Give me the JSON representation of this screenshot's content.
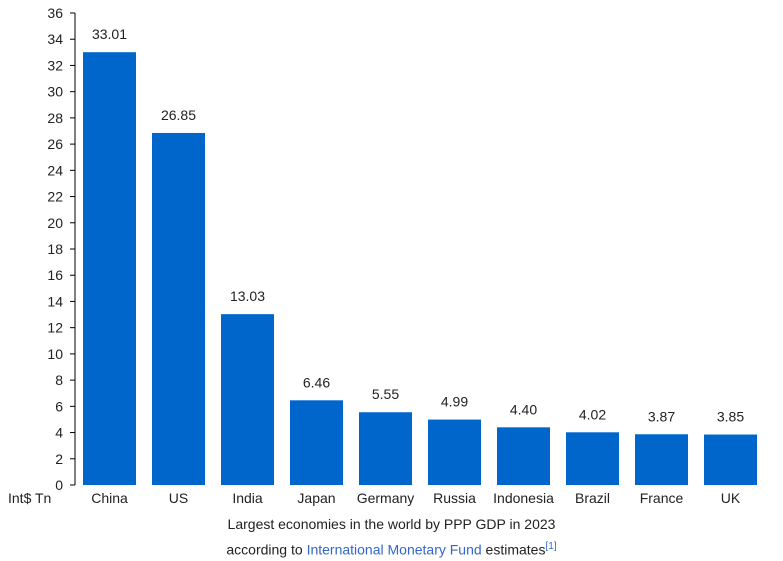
{
  "chart_data": {
    "type": "bar",
    "categories": [
      "China",
      "US",
      "India",
      "Japan",
      "Germany",
      "Russia",
      "Indonesia",
      "Brazil",
      "France",
      "UK"
    ],
    "values": [
      33.01,
      26.85,
      13.03,
      6.46,
      5.55,
      4.99,
      4.4,
      4.02,
      3.87,
      3.85
    ],
    "value_labels": [
      "33.01",
      "26.85",
      "13.03",
      "6.46",
      "5.55",
      "4.99",
      "4.40",
      "4.02",
      "3.87",
      "3.85"
    ],
    "ylabel": "Int$ Tn",
    "ylim": [
      0,
      36
    ],
    "yticks": [
      0,
      2,
      4,
      6,
      8,
      10,
      12,
      14,
      16,
      18,
      20,
      22,
      24,
      26,
      28,
      30,
      32,
      34,
      36
    ],
    "bar_color": "#0066cc",
    "grid": false
  },
  "caption": {
    "line1": "Largest economies in the world by PPP GDP in 2023",
    "line2_prefix": "according to ",
    "link_text": "International Monetary Fund",
    "line2_suffix": " estimates",
    "ref": "[1]"
  }
}
